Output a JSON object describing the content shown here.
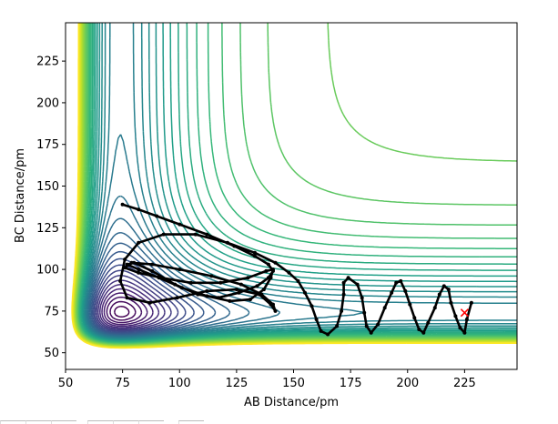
{
  "chart_data": {
    "type": "contour",
    "xlabel": "AB Distance/pm",
    "ylabel": "BC Distance/pm",
    "xlim": [
      50,
      248
    ],
    "ylim": [
      40,
      248
    ],
    "xticks": [
      50,
      75,
      100,
      125,
      150,
      175,
      200,
      225
    ],
    "yticks": [
      50,
      75,
      100,
      125,
      150,
      175,
      200,
      225
    ],
    "grid": false,
    "colormap": "viridis",
    "contour_levels": 40,
    "potential": {
      "r0": 74,
      "D": 1.0,
      "a": 0.045
    },
    "trajectory": {
      "name": "trajectory",
      "color": "#000000",
      "points": [
        [
          75,
          139
        ],
        [
          82,
          136
        ],
        [
          90,
          132
        ],
        [
          100,
          127
        ],
        [
          112,
          121
        ],
        [
          124,
          114
        ],
        [
          133,
          108
        ],
        [
          139,
          103
        ],
        [
          141,
          99
        ],
        [
          139,
          95
        ],
        [
          134,
          90
        ],
        [
          126,
          86
        ],
        [
          117,
          83
        ],
        [
          108,
          85
        ],
        [
          98,
          91
        ],
        [
          88,
          99
        ],
        [
          80,
          104
        ],
        [
          77,
          103
        ],
        [
          82,
          100
        ],
        [
          91,
          95
        ],
        [
          101,
          89
        ],
        [
          112,
          84
        ],
        [
          122,
          81
        ],
        [
          131,
          82
        ],
        [
          137,
          88
        ],
        [
          140,
          95
        ],
        [
          141,
          100
        ],
        [
          138,
          99
        ],
        [
          130,
          95
        ],
        [
          118,
          92
        ],
        [
          105,
          92
        ],
        [
          92,
          95
        ],
        [
          82,
          98
        ],
        [
          76,
          101
        ],
        [
          79,
          104
        ],
        [
          88,
          103
        ],
        [
          100,
          100
        ],
        [
          114,
          96
        ],
        [
          127,
          91
        ],
        [
          136,
          85
        ],
        [
          141,
          79
        ],
        [
          142,
          75
        ],
        [
          140,
          79
        ],
        [
          135,
          85
        ],
        [
          125,
          88
        ],
        [
          112,
          87
        ],
        [
          99,
          83
        ],
        [
          87,
          80
        ],
        [
          77,
          83
        ],
        [
          74,
          93
        ],
        [
          76,
          106
        ],
        [
          82,
          116
        ],
        [
          93,
          121
        ],
        [
          107,
          121
        ],
        [
          121,
          116
        ],
        [
          133,
          110
        ],
        [
          142,
          104
        ],
        [
          148,
          98
        ],
        [
          152,
          93
        ],
        [
          155,
          86
        ],
        [
          158,
          78
        ],
        [
          160,
          70
        ],
        [
          162,
          63
        ],
        [
          165,
          61
        ],
        [
          169,
          66
        ],
        [
          171,
          75
        ],
        [
          172,
          85
        ],
        [
          172,
          92
        ],
        [
          174,
          95
        ],
        [
          178,
          91
        ],
        [
          180,
          83
        ],
        [
          181,
          74
        ],
        [
          182,
          66
        ],
        [
          184,
          62
        ],
        [
          187,
          67
        ],
        [
          190,
          77
        ],
        [
          193,
          86
        ],
        [
          195,
          92
        ],
        [
          197,
          93
        ],
        [
          199,
          87
        ],
        [
          201,
          79
        ],
        [
          203,
          71
        ],
        [
          205,
          64
        ],
        [
          207,
          62
        ],
        [
          209,
          68
        ],
        [
          212,
          77
        ],
        [
          214,
          85
        ],
        [
          216,
          90
        ],
        [
          218,
          88
        ],
        [
          219,
          80
        ],
        [
          221,
          72
        ],
        [
          223,
          65
        ],
        [
          225,
          62
        ],
        [
          226,
          70
        ],
        [
          228,
          80
        ]
      ]
    },
    "marker": {
      "x": 225,
      "y": 74,
      "symbol": "x",
      "color": "#ff0000"
    }
  }
}
